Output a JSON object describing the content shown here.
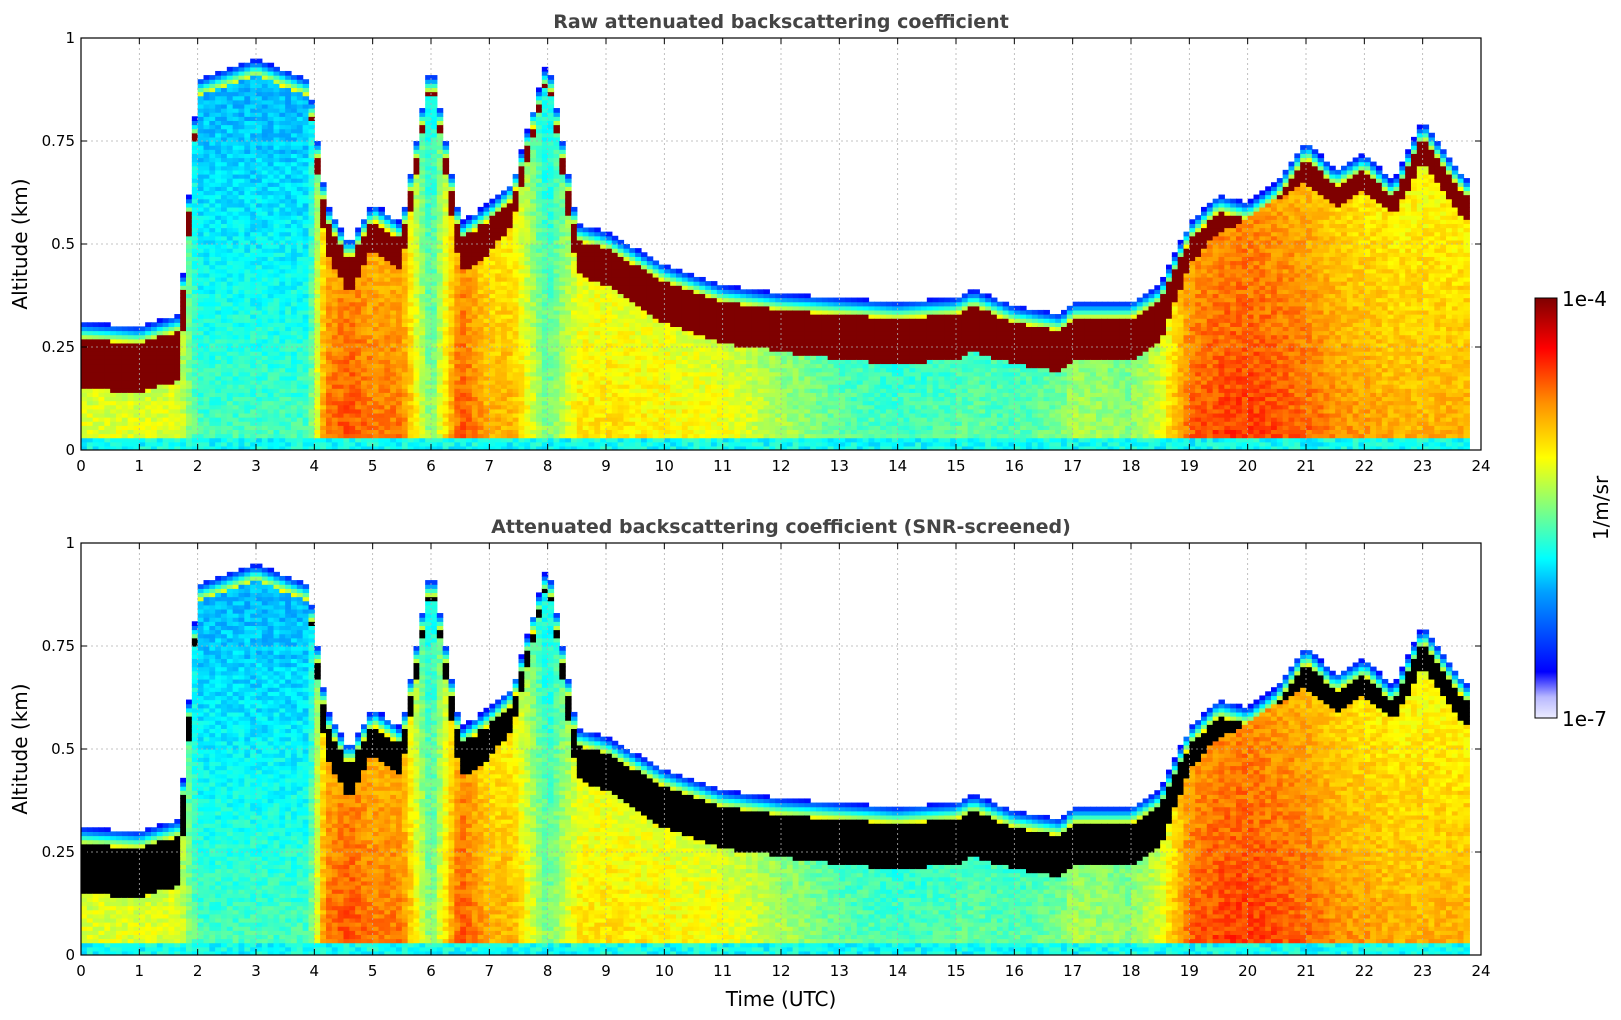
{
  "chart_data": [
    {
      "type": "heatmap",
      "title": "Raw attenuated backscattering coefficient",
      "xlabel": "",
      "ylabel": "Altitude (km)",
      "xlim": [
        0,
        24
      ],
      "ylim": [
        0,
        1
      ],
      "xticks": [
        "0",
        "1",
        "2",
        "3",
        "4",
        "5",
        "6",
        "7",
        "8",
        "9",
        "10",
        "11",
        "12",
        "13",
        "14",
        "15",
        "16",
        "17",
        "18",
        "19",
        "20",
        "21",
        "22",
        "23",
        "24"
      ],
      "yticks": [
        "0",
        "0.25",
        "0.5",
        "0.75",
        "1"
      ],
      "grid": true,
      "colorscale": "jet",
      "saturated_color": "#7f0000",
      "profile": {
        "time_utc": [
          0,
          1,
          1.7,
          2,
          3,
          3.9,
          4.2,
          4.6,
          5,
          5.5,
          6,
          6.5,
          7,
          7.4,
          8,
          8.5,
          9,
          10,
          11,
          12,
          13,
          14,
          15,
          15.3,
          16,
          16.8,
          17,
          18,
          18.5,
          19,
          19.5,
          20,
          20.5,
          21,
          21.5,
          22,
          22.5,
          23,
          23.5,
          23.8
        ],
        "layer_top_km": [
          0.31,
          0.3,
          0.33,
          0.9,
          0.95,
          0.9,
          0.6,
          0.5,
          0.6,
          0.55,
          0.95,
          0.55,
          0.6,
          0.65,
          0.95,
          0.55,
          0.53,
          0.45,
          0.4,
          0.38,
          0.37,
          0.36,
          0.37,
          0.39,
          0.35,
          0.33,
          0.36,
          0.36,
          0.4,
          0.55,
          0.62,
          0.6,
          0.65,
          0.75,
          0.68,
          0.72,
          0.65,
          0.8,
          0.7,
          0.65
        ],
        "layer_thickness_km": [
          0.12,
          0.12,
          0.12,
          0.0,
          0.0,
          0.0,
          0.08,
          0.08,
          0.07,
          0.07,
          0.0,
          0.08,
          0.08,
          0.06,
          0.0,
          0.08,
          0.09,
          0.1,
          0.1,
          0.1,
          0.11,
          0.11,
          0.11,
          0.11,
          0.1,
          0.1,
          0.1,
          0.1,
          0.1,
          0.06,
          0.05,
          0.0,
          0.0,
          0.06,
          0.05,
          0.05,
          0.04,
          0.06,
          0.06,
          0.06
        ],
        "below_layer_intensity": [
          0.6,
          0.6,
          0.6,
          0.45,
          0.45,
          0.45,
          0.78,
          0.82,
          0.78,
          0.78,
          0.5,
          0.82,
          0.72,
          0.72,
          0.5,
          0.65,
          0.66,
          0.64,
          0.62,
          0.55,
          0.48,
          0.45,
          0.47,
          0.48,
          0.46,
          0.5,
          0.55,
          0.52,
          0.6,
          0.8,
          0.83,
          0.84,
          0.82,
          0.8,
          0.76,
          0.74,
          0.72,
          0.72,
          0.72,
          0.72
        ]
      },
      "colorbar": {
        "label": "1/m/sr",
        "max_label": "1e-4",
        "min_label": "1e-7",
        "min": 1e-07,
        "max": 0.0001,
        "scale": "log"
      }
    },
    {
      "type": "heatmap",
      "title": "Attenuated backscattering coefficient (SNR-screened)",
      "xlabel": "Time (UTC)",
      "ylabel": "Altitude (km)",
      "xlim": [
        0,
        24
      ],
      "ylim": [
        0,
        1
      ],
      "xticks": [
        "0",
        "1",
        "2",
        "3",
        "4",
        "5",
        "6",
        "7",
        "8",
        "9",
        "10",
        "11",
        "12",
        "13",
        "14",
        "15",
        "16",
        "17",
        "18",
        "19",
        "20",
        "21",
        "22",
        "23",
        "24"
      ],
      "yticks": [
        "0",
        "0.25",
        "0.5",
        "0.75",
        "1"
      ],
      "grid": true,
      "colorscale": "jet",
      "saturated_color": "#000000"
    }
  ]
}
